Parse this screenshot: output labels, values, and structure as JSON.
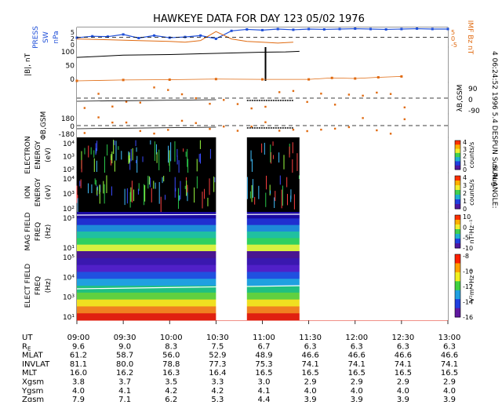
{
  "title": "HAWKEYE DATA FOR DAY 123 05/02 1976",
  "side_label": "4 06:24:52 1996  5.4 DESPUN Sun Aug",
  "sun_angle_label": "SUN ANGLE:",
  "colors": {
    "blue": "#1f4fd8",
    "orange": "#e06a10",
    "panel_bg": "#000000",
    "gap": "#ffffff"
  },
  "panels": {
    "press": {
      "ylabel_left": [
        "PRESS",
        "SW",
        "nPa"
      ],
      "yticks_left": [
        "5",
        "2",
        "0"
      ],
      "ylabel_right": "IMF Bz nT",
      "yticks_right": [
        "5",
        "0",
        "-5"
      ]
    },
    "bmag": {
      "ylabel": "|B|, nT",
      "yticks": [
        "100",
        "50",
        "0"
      ]
    },
    "lambda": {
      "ylabel": "λB,GSM",
      "yticks": [
        "90",
        "0",
        "-90"
      ]
    },
    "phi": {
      "ylabel": "ΦB,GSM",
      "yticks": [
        "180",
        "0",
        "-180"
      ]
    },
    "electron": {
      "ylabel": [
        "ELECTRON",
        "ENERGY",
        "(eV)"
      ],
      "yticks": [
        "10⁴",
        "10³",
        "10²"
      ],
      "cbar_ticks": [
        "4",
        "3",
        "2",
        "1",
        "0"
      ],
      "cbar_label": "counts/s"
    },
    "ion": {
      "ylabel": [
        "ION",
        "ENERGY",
        "(eV)"
      ],
      "yticks": [
        "10⁴",
        "10³",
        "10²"
      ],
      "cbar_ticks": [
        "4",
        "3",
        "2",
        "1",
        "0"
      ],
      "cbar_label": "counts/s"
    },
    "magfield": {
      "ylabel": [
        "MAG FIELD",
        "FREQ",
        "(Hz)"
      ],
      "yticks": [
        "10³",
        "10¹"
      ],
      "cbar_ticks": [
        "10",
        "0",
        "-5",
        "-10"
      ],
      "cbar_label": "nT²Hz⁻¹"
    },
    "elecfield": {
      "ylabel": [
        "ELECT FIELD",
        "FREQ",
        "(Hz)"
      ],
      "yticks": [
        "10⁵",
        "10⁴",
        "10³",
        "10¹"
      ],
      "cbar_ticks": [
        "-8",
        "-10",
        "-12",
        "-14",
        "-16"
      ],
      "cbar_label": "V²m⁻²Hz⁻¹"
    }
  },
  "chart_data": {
    "type": "table",
    "ephemeris": [
      {
        "label": "UT",
        "values": [
          "09:00",
          "09:30",
          "10:00",
          "10:30",
          "11:00",
          "11:30",
          "12:00",
          "12:30",
          "13:00"
        ]
      },
      {
        "label": "RE",
        "values": [
          "9.6",
          "9.0",
          "8.3",
          "7.5",
          "6.7",
          "6.3",
          "6.3",
          "6.3",
          "6.3"
        ]
      },
      {
        "label": "MLAT",
        "values": [
          "61.2",
          "58.7",
          "56.0",
          "52.9",
          "48.9",
          "46.6",
          "46.6",
          "46.6",
          "46.6"
        ]
      },
      {
        "label": "INVLAT",
        "values": [
          "81.1",
          "80.0",
          "78.8",
          "77.3",
          "75.3",
          "74.1",
          "74.1",
          "74.1",
          "74.1"
        ]
      },
      {
        "label": "MLT",
        "values": [
          "16.0",
          "16.2",
          "16.3",
          "16.4",
          "16.5",
          "16.5",
          "16.5",
          "16.5",
          "16.5"
        ]
      },
      {
        "label": "Xgsm",
        "values": [
          "3.8",
          "3.7",
          "3.5",
          "3.3",
          "3.0",
          "2.9",
          "2.9",
          "2.9",
          "2.9"
        ]
      },
      {
        "label": "Ygsm",
        "values": [
          "4.0",
          "4.1",
          "4.2",
          "4.2",
          "4.1",
          "4.0",
          "4.0",
          "4.0",
          "4.0"
        ]
      },
      {
        "label": "Zgsm",
        "values": [
          "7.9",
          "7.1",
          "6.2",
          "5.3",
          "4.4",
          "3.9",
          "3.9",
          "3.9",
          "3.9"
        ]
      }
    ],
    "x_range": [
      "09:00",
      "13:00"
    ],
    "data_gaps": [
      [
        "10:30",
        "10:50"
      ],
      [
        "11:24",
        "13:00"
      ]
    ],
    "spectrogram_gaps": [
      [
        "10:30",
        "10:50"
      ],
      [
        "11:24",
        "13:00"
      ]
    ],
    "pressure_series": {
      "name": "PRESS SW",
      "ylim": [
        0,
        5
      ],
      "x": [
        "09:00",
        "09:10",
        "09:20",
        "09:30",
        "09:40",
        "09:50",
        "10:00",
        "10:10",
        "10:20",
        "10:30",
        "10:40",
        "10:50",
        "11:00",
        "11:10",
        "11:20",
        "11:30",
        "11:40",
        "11:50",
        "12:00",
        "12:10",
        "12:20",
        "12:30",
        "12:40",
        "12:50",
        "13:00"
      ],
      "values": [
        2.6,
        3.0,
        2.9,
        3.5,
        2.5,
        3.2,
        2.6,
        2.8,
        3.2,
        2.3,
        4.5,
        4.9,
        4.7,
        5.0,
        4.8,
        5.0,
        4.9,
        5.0,
        5.1,
        5.0,
        4.9,
        5.0,
        5.1,
        5.0,
        5.0
      ]
    },
    "imf_bz_series": {
      "name": "IMF Bz nT",
      "ylim": [
        -5,
        5
      ],
      "x": [
        "09:00",
        "09:20",
        "09:40",
        "10:00",
        "10:10",
        "10:20",
        "10:30",
        "10:40",
        "10:50",
        "11:00",
        "11:10",
        "11:20"
      ],
      "values": [
        -1.0,
        -1.5,
        -2.0,
        -2.5,
        -3.0,
        -2.0,
        3.5,
        -1.0,
        -2.5,
        -3.0,
        -3.5,
        -3.0
      ]
    },
    "bmag_series": {
      "name": "|B|",
      "ylim": [
        0,
        100
      ],
      "x": [
        "09:00",
        "09:15",
        "09:30",
        "09:45",
        "10:00",
        "10:15",
        "10:30",
        "10:45",
        "11:00",
        "11:15",
        "11:20",
        "11:24"
      ],
      "values": [
        80,
        84,
        88,
        89,
        90,
        92,
        94,
        96,
        98,
        99,
        100,
        101
      ]
    },
    "bmag_orange": {
      "x": [
        "09:00",
        "09:30",
        "10:00",
        "10:30",
        "11:00",
        "11:30",
        "11:45",
        "12:00",
        "12:15",
        "12:30"
      ],
      "values": [
        0,
        3,
        4,
        6,
        5,
        5,
        10,
        8,
        12,
        15
      ]
    }
  }
}
